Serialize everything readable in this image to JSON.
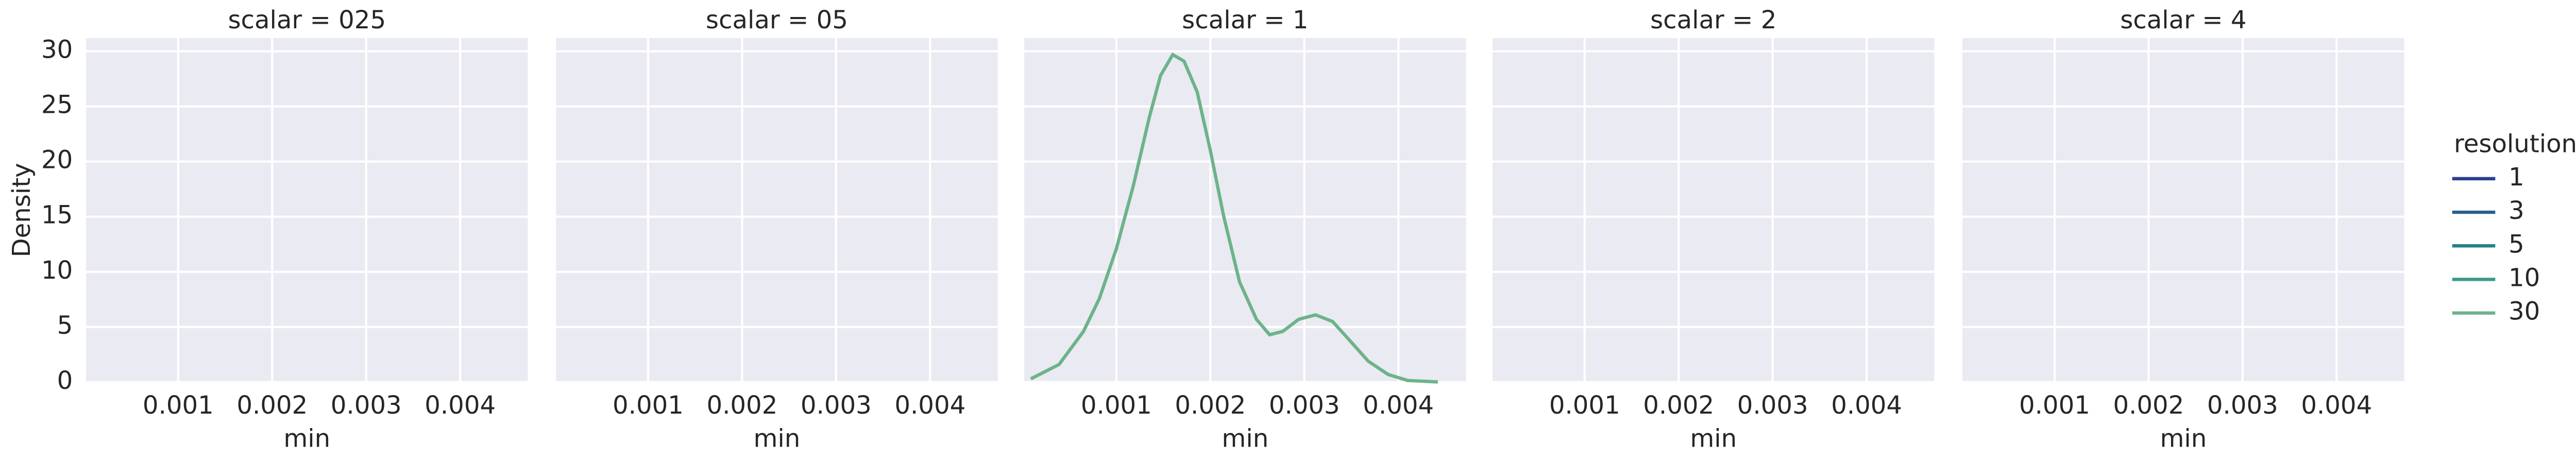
{
  "chart_data": {
    "type": "line",
    "facets": [
      "scalar = 025",
      "scalar = 05",
      "scalar = 1",
      "scalar = 2",
      "scalar = 4"
    ],
    "xlabel": "min",
    "ylabel": "Density",
    "xlim": [
      2e-05,
      0.00472
    ],
    "ylim": [
      0,
      31.2
    ],
    "xticks": [
      0.001,
      0.002,
      0.003,
      0.004
    ],
    "yticks": [
      0,
      5,
      10,
      15,
      20,
      25,
      30
    ],
    "grid": true,
    "legend_title": "resolution",
    "legend": "right",
    "series": [
      {
        "name": "1",
        "color": "#2c3f8f",
        "x": [],
        "values": []
      },
      {
        "name": "3",
        "color": "#2a5f8c",
        "x": [],
        "values": []
      },
      {
        "name": "5",
        "color": "#28808a",
        "x": [],
        "values": []
      },
      {
        "name": "10",
        "color": "#3a9a86",
        "x": [],
        "values": []
      },
      {
        "name": "30",
        "color": "#6db38a",
        "facet": 2,
        "x": [
          9e-05,
          0.00039,
          0.00065,
          0.00082,
          0.001,
          0.00118,
          0.00135,
          0.00147,
          0.0016,
          0.00172,
          0.00186,
          0.002,
          0.00214,
          0.00231,
          0.00249,
          0.00263,
          0.00277,
          0.00294,
          0.00312,
          0.0033,
          0.00347,
          0.00368,
          0.00389,
          0.0041,
          0.00442
        ],
        "values": [
          0.3,
          1.6,
          4.6,
          7.6,
          12.1,
          17.8,
          24,
          27.8,
          29.7,
          29.1,
          26.3,
          21,
          15.1,
          9.1,
          5.7,
          4.3,
          4.6,
          5.7,
          6.1,
          5.5,
          3.9,
          1.9,
          0.7,
          0.15,
          0.02
        ]
      }
    ]
  }
}
